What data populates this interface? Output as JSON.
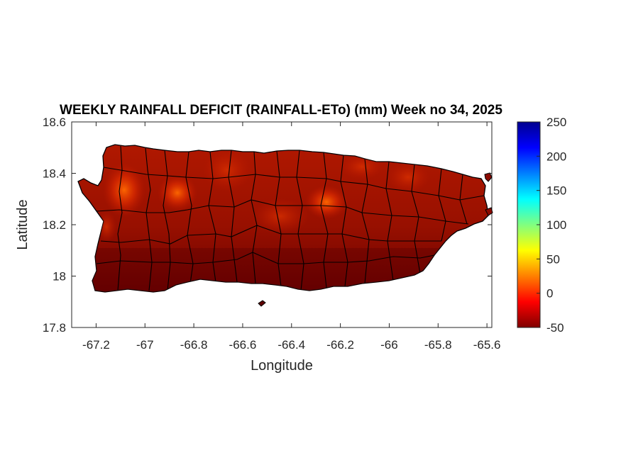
{
  "map": {
    "title": "WEEKLY RAINFALL DEFICIT (RAINFALL-ETo) (mm) Week no 34, 2025",
    "xlabel": "Longitude",
    "ylabel": "Latitude",
    "xlim": [
      -67.3,
      -65.58
    ],
    "ylim": [
      17.8,
      18.6
    ],
    "xticks": [
      "-67.2",
      "-67",
      "-66.8",
      "-66.6",
      "-66.4",
      "-66.2",
      "-66",
      "-65.8",
      "-65.6"
    ],
    "yticks": [
      "18.6",
      "18.4",
      "18.2",
      "18",
      "17.8"
    ],
    "region": "Puerto Rico",
    "colormap": "jet",
    "colors": {
      "land_base": "#8b0a00",
      "land_dark": "#5e0000",
      "hotspot": "#ff5a00",
      "outline": "#000000"
    }
  },
  "colorbar": {
    "ticks": [
      "250",
      "200",
      "150",
      "100",
      "50",
      "0",
      "-50"
    ],
    "range": [
      -50,
      250
    ]
  }
}
